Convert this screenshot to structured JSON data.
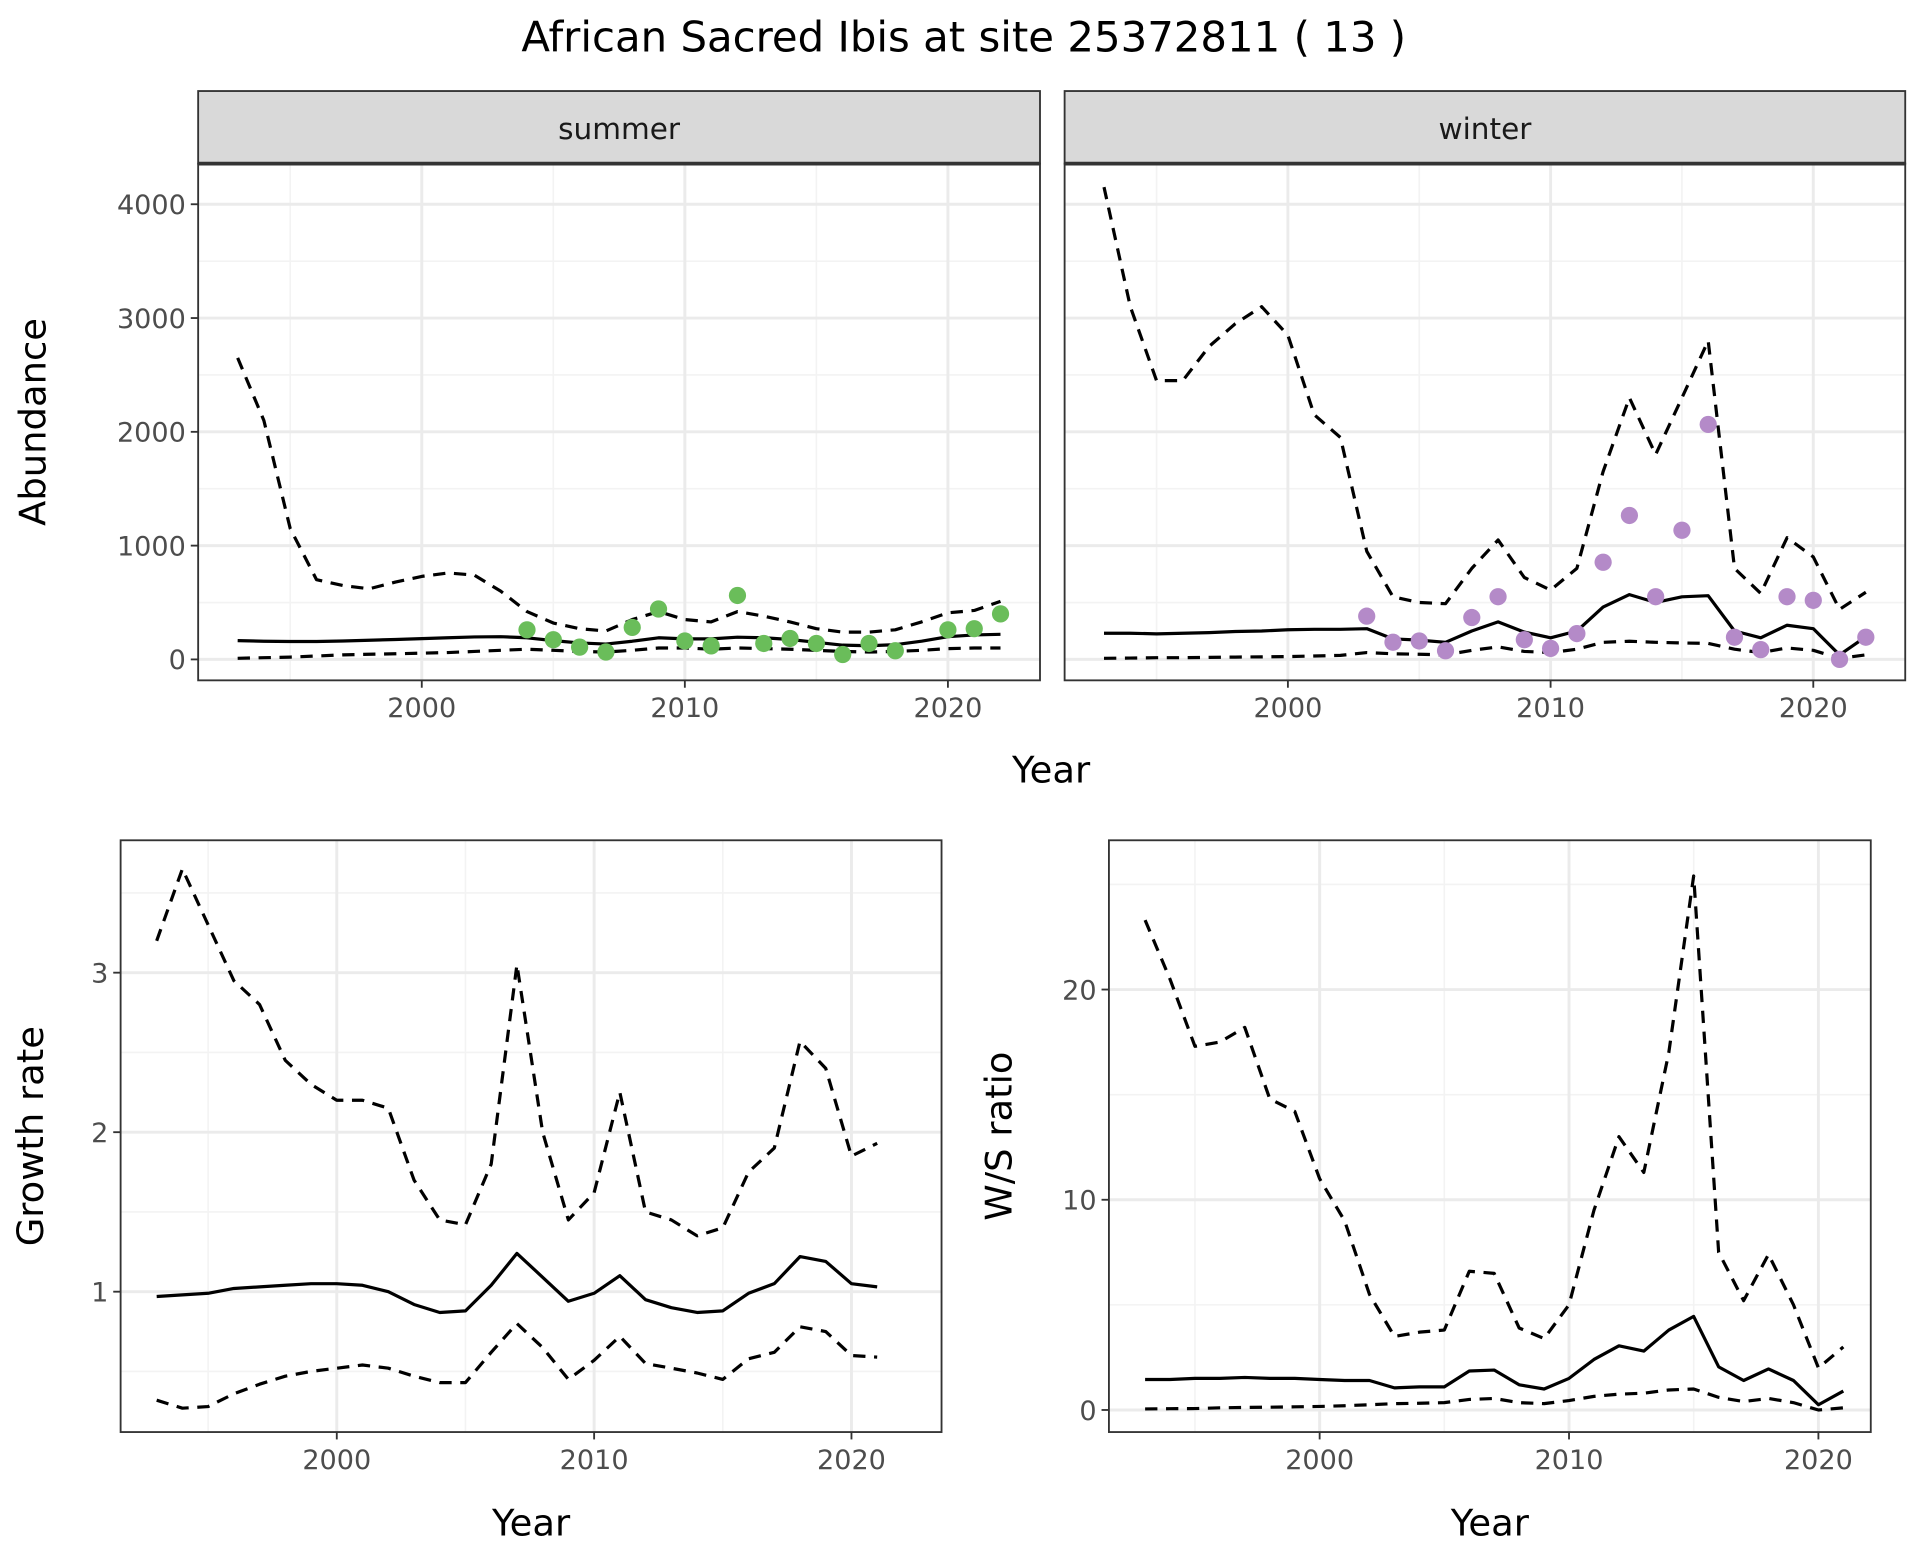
{
  "title": "African Sacred Ibis at site 25372811 ( 13 )",
  "colors": {
    "summer_points": "#6abd5a",
    "winter_points": "#b48ac8",
    "line": "#000000",
    "strip_bg": "#d9d9d9",
    "grid": "#ebebeb"
  },
  "abundance_xlabel": "Year",
  "chart_data": [
    {
      "id": "summer",
      "type": "line",
      "facet_label": "summer",
      "xlabel": "",
      "ylabel": "Abundance",
      "xlim": [
        1991.5,
        2023.5
      ],
      "ylim": [
        -184,
        4357
      ],
      "xticks": [
        2000,
        2010,
        2020
      ],
      "yticks": [
        0,
        1000,
        2000,
        3000,
        4000
      ],
      "x": [
        1993,
        1994,
        1995,
        1996,
        1997,
        1998,
        1999,
        2000,
        2001,
        2002,
        2003,
        2004,
        2005,
        2006,
        2007,
        2008,
        2009,
        2010,
        2011,
        2012,
        2013,
        2014,
        2015,
        2016,
        2017,
        2018,
        2019,
        2020,
        2021,
        2022
      ],
      "series": [
        {
          "name": "mean",
          "style": "solid",
          "values": [
            165,
            160,
            158,
            158,
            162,
            168,
            175,
            182,
            190,
            198,
            200,
            190,
            165,
            145,
            135,
            160,
            190,
            180,
            180,
            195,
            190,
            175,
            150,
            125,
            120,
            130,
            160,
            200,
            215,
            220
          ]
        },
        {
          "name": "upper",
          "style": "dashed",
          "values": [
            2650,
            2100,
            1150,
            700,
            650,
            620,
            680,
            730,
            760,
            740,
            600,
            420,
            320,
            270,
            250,
            350,
            420,
            350,
            330,
            420,
            380,
            330,
            270,
            240,
            240,
            260,
            330,
            410,
            430,
            510
          ]
        },
        {
          "name": "lower",
          "style": "dashed",
          "values": [
            10,
            15,
            20,
            30,
            40,
            45,
            50,
            55,
            60,
            70,
            80,
            90,
            80,
            70,
            65,
            80,
            100,
            100,
            90,
            100,
            95,
            90,
            80,
            70,
            65,
            70,
            80,
            95,
            100,
            100
          ]
        }
      ],
      "points": {
        "x": [
          2004,
          2005,
          2006,
          2007,
          2008,
          2009,
          2010,
          2011,
          2012,
          2013,
          2014,
          2015,
          2016,
          2017,
          2018,
          2020,
          2021,
          2022
        ],
        "y": [
          260,
          173,
          108,
          65,
          281,
          443,
          162,
          119,
          562,
          140,
          184,
          140,
          43,
          140,
          76,
          260,
          270,
          400
        ]
      }
    },
    {
      "id": "winter",
      "type": "line",
      "facet_label": "winter",
      "xlabel": "",
      "ylabel": "",
      "xlim": [
        1991.5,
        2023.5
      ],
      "ylim": [
        -184,
        4357
      ],
      "xticks": [
        2000,
        2010,
        2020
      ],
      "yticks": [
        0,
        1000,
        2000,
        3000,
        4000
      ],
      "x": [
        1993,
        1994,
        1995,
        1996,
        1997,
        1998,
        1999,
        2000,
        2001,
        2002,
        2003,
        2004,
        2005,
        2006,
        2007,
        2008,
        2009,
        2010,
        2011,
        2012,
        2013,
        2014,
        2015,
        2016,
        2017,
        2018,
        2019,
        2020,
        2021,
        2022
      ],
      "series": [
        {
          "name": "mean",
          "style": "solid",
          "values": [
            230,
            230,
            225,
            230,
            235,
            245,
            250,
            260,
            265,
            265,
            270,
            180,
            170,
            150,
            250,
            330,
            240,
            190,
            250,
            460,
            570,
            500,
            550,
            560,
            250,
            190,
            300,
            270,
            40,
            200
          ]
        },
        {
          "name": "upper",
          "style": "dashed",
          "values": [
            4150,
            3100,
            2450,
            2450,
            2750,
            2950,
            3100,
            2850,
            2150,
            1950,
            950,
            550,
            500,
            490,
            800,
            1050,
            720,
            610,
            800,
            1650,
            2300,
            1800,
            2300,
            2800,
            800,
            580,
            1070,
            900,
            440,
            590
          ]
        },
        {
          "name": "lower",
          "style": "dashed",
          "values": [
            10,
            12,
            15,
            15,
            18,
            20,
            22,
            25,
            30,
            35,
            60,
            50,
            45,
            40,
            80,
            110,
            70,
            60,
            90,
            150,
            160,
            150,
            145,
            140,
            90,
            60,
            100,
            80,
            10,
            40
          ]
        }
      ],
      "points": {
        "x": [
          2003,
          2004,
          2005,
          2006,
          2007,
          2008,
          2009,
          2010,
          2011,
          2012,
          2013,
          2014,
          2015,
          2016,
          2017,
          2018,
          2019,
          2020,
          2021,
          2022
        ],
        "y": [
          380,
          151,
          162,
          76,
          368,
          551,
          173,
          97,
          227,
          854,
          1265,
          551,
          1135,
          2065,
          195,
          86,
          551,
          519,
          0,
          195
        ]
      }
    },
    {
      "id": "growth",
      "type": "line",
      "xlabel": "Year",
      "ylabel": "Growth rate",
      "xlim": [
        1991.6,
        2023.5
      ],
      "ylim": [
        0.12,
        3.83
      ],
      "xticks": [
        2000,
        2010,
        2020
      ],
      "yticks": [
        1,
        2,
        3
      ],
      "x": [
        1993,
        1994,
        1995,
        1996,
        1997,
        1998,
        1999,
        2000,
        2001,
        2002,
        2003,
        2004,
        2005,
        2006,
        2007,
        2008,
        2009,
        2010,
        2011,
        2012,
        2013,
        2014,
        2015,
        2016,
        2017,
        2018,
        2019,
        2020,
        2021
      ],
      "series": [
        {
          "name": "mean",
          "style": "solid",
          "values": [
            0.97,
            0.98,
            0.99,
            1.02,
            1.03,
            1.04,
            1.05,
            1.05,
            1.04,
            1.0,
            0.92,
            0.87,
            0.88,
            1.04,
            1.24,
            1.09,
            0.94,
            0.99,
            1.1,
            0.95,
            0.9,
            0.87,
            0.88,
            0.99,
            1.05,
            1.22,
            1.19,
            1.05,
            1.03
          ]
        },
        {
          "name": "upper",
          "style": "dashed",
          "values": [
            3.2,
            3.65,
            3.3,
            2.95,
            2.8,
            2.45,
            2.3,
            2.2,
            2.2,
            2.15,
            1.7,
            1.45,
            1.42,
            1.8,
            3.05,
            2.0,
            1.45,
            1.62,
            2.25,
            1.5,
            1.45,
            1.35,
            1.4,
            1.75,
            1.9,
            2.57,
            2.4,
            1.85,
            1.93
          ]
        },
        {
          "name": "lower",
          "style": "dashed",
          "values": [
            0.32,
            0.27,
            0.28,
            0.36,
            0.42,
            0.47,
            0.5,
            0.52,
            0.54,
            0.52,
            0.47,
            0.43,
            0.43,
            0.62,
            0.8,
            0.65,
            0.45,
            0.57,
            0.72,
            0.55,
            0.52,
            0.49,
            0.45,
            0.58,
            0.62,
            0.78,
            0.75,
            0.6,
            0.59
          ]
        }
      ]
    },
    {
      "id": "ws",
      "type": "line",
      "xlabel": "Year",
      "ylabel": "W/S ratio",
      "xlim": [
        1991.55,
        2022.1
      ],
      "ylim": [
        -1.05,
        27.1
      ],
      "xticks": [
        2000,
        2010,
        2020
      ],
      "yticks": [
        0,
        10,
        20
      ],
      "x": [
        1993,
        1994,
        1995,
        1996,
        1997,
        1998,
        1999,
        2000,
        2001,
        2002,
        2003,
        2004,
        2005,
        2006,
        2007,
        2008,
        2009,
        2010,
        2011,
        2012,
        2013,
        2014,
        2015,
        2016,
        2017,
        2018,
        2019,
        2020,
        2021
      ],
      "series": [
        {
          "name": "mean",
          "style": "solid",
          "values": [
            1.45,
            1.45,
            1.5,
            1.5,
            1.55,
            1.5,
            1.5,
            1.45,
            1.4,
            1.4,
            1.05,
            1.1,
            1.1,
            1.85,
            1.9,
            1.2,
            1.0,
            1.5,
            2.4,
            3.05,
            2.8,
            3.8,
            4.45,
            2.05,
            1.4,
            1.95,
            1.4,
            0.25,
            0.9
          ]
        },
        {
          "name": "upper",
          "style": "dashed",
          "values": [
            23.3,
            20.5,
            17.3,
            17.5,
            18.2,
            14.8,
            14.2,
            11.0,
            9.0,
            5.5,
            3.5,
            3.7,
            3.8,
            6.6,
            6.5,
            3.9,
            3.4,
            5.0,
            9.5,
            13.0,
            11.3,
            17.0,
            25.4,
            7.5,
            5.2,
            7.4,
            5.0,
            2.0,
            3.0
          ]
        },
        {
          "name": "lower",
          "style": "dashed",
          "values": [
            0.05,
            0.06,
            0.07,
            0.1,
            0.12,
            0.13,
            0.15,
            0.17,
            0.2,
            0.25,
            0.3,
            0.32,
            0.35,
            0.5,
            0.55,
            0.35,
            0.3,
            0.45,
            0.65,
            0.75,
            0.8,
            0.95,
            1.0,
            0.6,
            0.4,
            0.55,
            0.35,
            0.0,
            0.1
          ]
        }
      ]
    }
  ]
}
